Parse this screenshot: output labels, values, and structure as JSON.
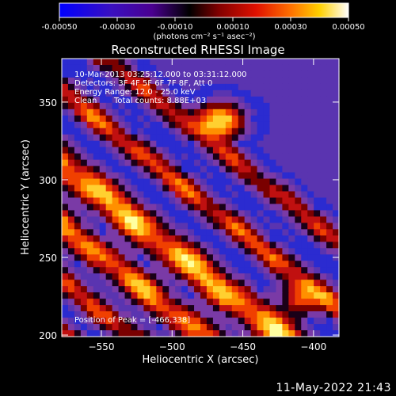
{
  "colorbar": {
    "ticks": [
      "-0.00050",
      "-0.00030",
      "-0.00010",
      "0.00010",
      "0.00030",
      "0.00050"
    ],
    "range": [
      -0.0005,
      0.0005
    ],
    "unit_label": "(photons cm⁻² s⁻¹ asec⁻²)",
    "colors": [
      "#0000ff",
      "#4a0090",
      "#000000",
      "#c00000",
      "#ff6000",
      "#ffd000",
      "#ffffff"
    ]
  },
  "chart_data": {
    "type": "heatmap",
    "title": "Reconstructed RHESSI Image",
    "xlabel": "Heliocentric X (arcsec)",
    "ylabel": "Heliocentric Y (arcsec)",
    "xlim": [
      -578,
      -382
    ],
    "ylim": [
      199,
      378
    ],
    "xticks": [
      -550,
      -500,
      -450,
      -400
    ],
    "yticks": [
      200,
      250,
      300,
      350
    ],
    "annotations": [
      "10-Mar-2013 03:25:12.000 to 03:31:12.000",
      "Detectors: 3F 4F 5F 6F 7F 8F, Att 0",
      "Energy Range: 12.0 - 25.0 keV",
      "Clean",
      "Total counts: 8.88E+03",
      "Position of Peak = [-466,338]"
    ],
    "peak": [
      -466,
      338
    ],
    "palette": [
      "#2b2bd0",
      "#5a34b0",
      "#7a3aa6",
      "#1a0018",
      "#7a0000",
      "#c01010",
      "#f04000",
      "#ff9000",
      "#ffd030",
      "#ffffa0",
      "#ffffff"
    ]
  },
  "footer": {
    "date": "11-May-2022 21:43"
  }
}
